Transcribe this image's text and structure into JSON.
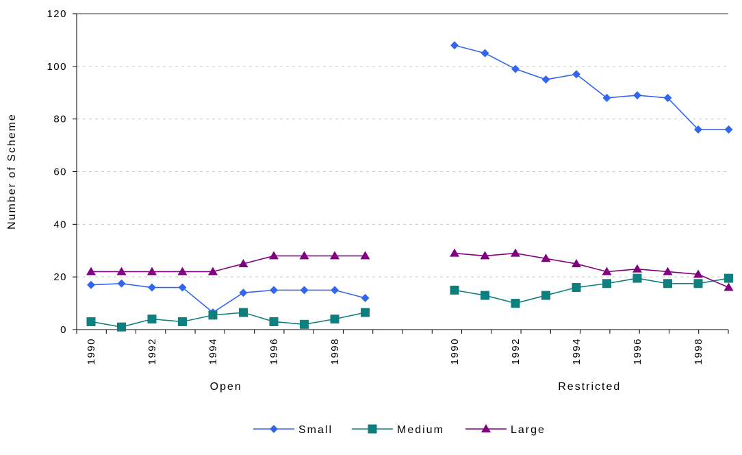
{
  "chart_data": {
    "type": "line",
    "ylabel": "Number of Scheme",
    "ylim": [
      0,
      120
    ],
    "yticks": [
      "0",
      "20",
      "40",
      "60",
      "80",
      "100",
      "120"
    ],
    "grid": "horizontal dashed",
    "legend_position": "bottom-center",
    "groups": [
      {
        "label": "Open",
        "x": [
          1990,
          1991,
          1992,
          1993,
          1994,
          1995,
          1996,
          1997,
          1998,
          1999
        ],
        "tick_labels": [
          "1990",
          "1992",
          "1994",
          "1996",
          "1998"
        ],
        "series": [
          {
            "name": "Small",
            "values": [
              17,
              17.5,
              16,
              16,
              6.5,
              14,
              15,
              15,
              15,
              12
            ]
          },
          {
            "name": "Medium",
            "values": [
              3,
              1,
              4,
              3,
              5.5,
              6.5,
              3,
              2,
              4,
              6.5
            ]
          },
          {
            "name": "Large",
            "values": [
              22,
              22,
              22,
              22,
              22,
              25,
              28,
              28,
              28,
              28
            ]
          }
        ]
      },
      {
        "label": "Restricted",
        "x": [
          1990,
          1991,
          1992,
          1993,
          1994,
          1995,
          1996,
          1997,
          1998,
          1999
        ],
        "tick_labels": [
          "1990",
          "1992",
          "1994",
          "1996",
          "1998"
        ],
        "series": [
          {
            "name": "Small",
            "values": [
              108,
              105,
              99,
              95,
              97,
              88,
              89,
              88,
              76,
              76
            ]
          },
          {
            "name": "Medium",
            "values": [
              15,
              13,
              10,
              13,
              16,
              17.5,
              19.5,
              17.5,
              17.5,
              19.5
            ]
          },
          {
            "name": "Large",
            "values": [
              29,
              28,
              29,
              27,
              25,
              22,
              23,
              22,
              21,
              16
            ]
          }
        ]
      }
    ],
    "legend": [
      {
        "name": "Small",
        "color": "#3366ee",
        "marker": "diamond"
      },
      {
        "name": "Medium",
        "color": "#0e7f7f",
        "marker": "square"
      },
      {
        "name": "Large",
        "color": "#800080",
        "marker": "triangle"
      }
    ]
  }
}
